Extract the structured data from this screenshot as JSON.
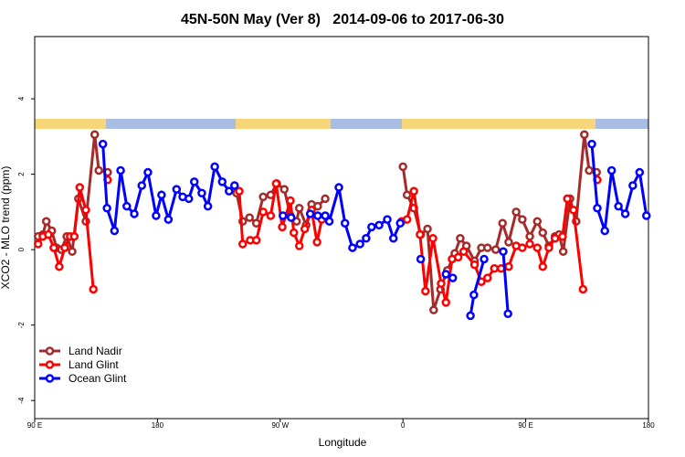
{
  "chart_data": {
    "type": "line",
    "title": "45N-50N May (Ver 8)   2014-09-06 to 2017-06-30",
    "x_label": "Longitude",
    "y_label": "XCO2 - MLO trend (ppm)",
    "xlim": [
      90,
      540
    ],
    "ylim": [
      -4.48,
      5.65
    ],
    "xticks": [
      {
        "value": 90,
        "label": "90 E"
      },
      {
        "value": 180,
        "label": "180"
      },
      {
        "value": 270,
        "label": "90 W"
      },
      {
        "value": 360,
        "label": "0"
      },
      {
        "value": 450,
        "label": "90 E"
      },
      {
        "value": 540,
        "label": "180"
      }
    ],
    "yticks": [
      -4,
      -2,
      0,
      2,
      4
    ],
    "legend": "bottom-left",
    "series": [
      {
        "name": "Land Nadir",
        "color": "#a52a2a",
        "x": [
          92.5,
          96,
          98.5,
          102.5,
          106,
          109.5,
          113.5,
          117.5,
          122,
          127.5,
          134,
          137,
          143.5,
          null,
          238,
          242.5,
          247.5,
          252.5,
          257.5,
          263,
          267.5,
          273,
          277.5,
          282,
          284,
          289,
          293,
          297.5,
          303,
          null,
          360,
          363,
          368,
          373,
          378,
          382.5,
          387.5,
          392.5,
          398,
          402,
          406.5,
          412.5,
          417.5,
          422,
          428,
          433,
          437.5,
          443,
          447.5,
          453,
          458.5,
          462.5,
          467,
          471.5,
          474.5,
          477.5,
          482.5,
          487,
          493,
          496.5,
          502
        ],
        "values": [
          0.35,
          0.4,
          0.75,
          0.5,
          0.05,
          0,
          0.35,
          -0.05,
          1.35,
          0.75,
          3.05,
          2.1,
          2.05,
          null,
          1.5,
          0.75,
          0.85,
          0.7,
          1.4,
          1.45,
          1.75,
          1.6,
          0.9,
          0.75,
          1.1,
          0.65,
          1.2,
          1.15,
          1.35,
          null,
          2.2,
          1.45,
          1.1,
          0.4,
          0.55,
          -1.6,
          -1.05,
          -0.55,
          -0.1,
          0.3,
          0.1,
          -0.3,
          0.05,
          0.05,
          0,
          0.7,
          0.2,
          1.0,
          0.8,
          0.35,
          0.75,
          0.45,
          0.1,
          0.35,
          0.4,
          -0.05,
          1.35,
          0.75,
          3.05,
          2.1,
          2.05
        ]
      },
      {
        "name": "Land Glint",
        "color": "#ff0000",
        "x": [
          92.5,
          96,
          100,
          104,
          108,
          112,
          116,
          119,
          123,
          127.5,
          133,
          null,
          143.5,
          null,
          240,
          242.5,
          248,
          252.5,
          257.5,
          263,
          267,
          271.5,
          277.5,
          280,
          284,
          288,
          293,
          297,
          300.5,
          null,
          359,
          363,
          368,
          372.5,
          376.5,
          382,
          388,
          391.5,
          396,
          400.5,
          404.5,
          412.5,
          417.5,
          422,
          427,
          432,
          437.5,
          443,
          447.5,
          453,
          458.5,
          462.5,
          467,
          471.5,
          477,
          480.5,
          485,
          492,
          null,
          502.5
        ],
        "values": [
          0.15,
          0.35,
          0.4,
          0.05,
          -0.45,
          0.05,
          0.35,
          0.35,
          1.65,
          1.05,
          -1.05,
          null,
          1.85,
          null,
          1.55,
          0.15,
          0.25,
          0.25,
          1.0,
          0.9,
          1.75,
          0.6,
          1.3,
          0.45,
          0.1,
          0.55,
          1.05,
          0.2,
          0.8,
          null,
          0.75,
          0.8,
          1.55,
          0.4,
          -1.1,
          0.3,
          -0.9,
          -1.4,
          -0.25,
          -0.2,
          -0.05,
          -0.4,
          -0.85,
          -0.75,
          -0.5,
          -0.5,
          -0.45,
          0.1,
          0.05,
          0.15,
          0.05,
          -0.45,
          0.05,
          0.3,
          0.35,
          1.35,
          1.05,
          -1.05,
          null,
          1.85
        ]
      },
      {
        "name": "Ocean Glint",
        "color": "#0000ff",
        "x": [
          140,
          143,
          148.5,
          153,
          157.5,
          163,
          168.5,
          173,
          179,
          183,
          188,
          194,
          198.5,
          203,
          207,
          212.5,
          217,
          222,
          227.5,
          232.5,
          236.5,
          null,
          272,
          278,
          null,
          292,
          297.5,
          303,
          306,
          313,
          317.5,
          323,
          328.5,
          333,
          337,
          342.5,
          348.5,
          353,
          358,
          null,
          373,
          null,
          391.5,
          396.5,
          null,
          409.5,
          412,
          419.5,
          null,
          433.5,
          437,
          null,
          498.5,
          502.5,
          508,
          513,
          518,
          523,
          528.5,
          533.5,
          538.5
        ],
        "values": [
          2.8,
          1.1,
          0.5,
          2.1,
          1.15,
          0.95,
          1.7,
          2.05,
          0.9,
          1.45,
          0.8,
          1.6,
          1.4,
          1.35,
          1.8,
          1.5,
          1.15,
          2.2,
          1.8,
          1.55,
          1.7,
          null,
          0.9,
          0.85,
          null,
          0.95,
          0.9,
          0.9,
          0.75,
          1.65,
          0.7,
          0.05,
          0.15,
          0.3,
          0.6,
          0.65,
          0.8,
          0.3,
          0.7,
          null,
          -0.25,
          null,
          -0.65,
          -0.75,
          null,
          -1.75,
          -1.2,
          -0.25,
          null,
          -0.05,
          -1.7,
          null,
          2.8,
          1.1,
          0.5,
          2.1,
          1.15,
          0.95,
          1.7,
          2.05,
          0.9
        ]
      }
    ]
  }
}
